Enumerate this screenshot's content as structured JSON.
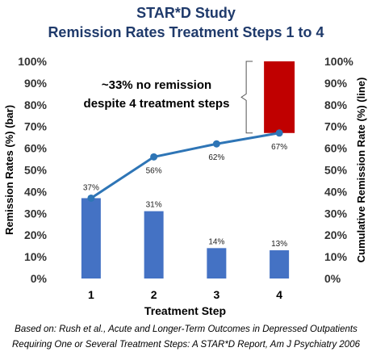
{
  "title": "STAR*D Study",
  "subtitle": "Remission Rates Treatment Steps 1 to 4",
  "caption_line1": "Based on: Rush et al., Acute and Longer-Term Outcomes in Depressed Outpatients",
  "caption_line2": "Requiring One or Several Treatment Steps: A STAR*D Report, Am J Psychiatry 2006",
  "chart_data": {
    "type": "bar",
    "categories": [
      "1",
      "2",
      "3",
      "4"
    ],
    "series": [
      {
        "kind": "bar",
        "values": [
          37,
          31,
          14,
          13
        ],
        "labels": [
          "37%",
          "31%",
          "14%",
          "13%"
        ],
        "color": "#4472c4"
      },
      {
        "kind": "line",
        "values": [
          37,
          56,
          62,
          67
        ],
        "labels": [
          "37%",
          "56%",
          "62%",
          "67%"
        ],
        "color": "#2e75b6"
      }
    ],
    "no_remission_bar": {
      "from": 67,
      "to": 100,
      "color": "#c00000"
    },
    "annotation": [
      "~33% no remission",
      "despite 4 treatment steps"
    ],
    "xlabel": "Treatment Step",
    "ylabel": "Remission Rates (%) (bar)",
    "y2label": "Cumulative Remission Rate (%) (line)",
    "ylim": [
      0,
      100
    ],
    "yticks": [
      "0%",
      "10%",
      "20%",
      "30%",
      "40%",
      "50%",
      "60%",
      "70%",
      "80%",
      "90%",
      "100%"
    ],
    "grid": false
  }
}
